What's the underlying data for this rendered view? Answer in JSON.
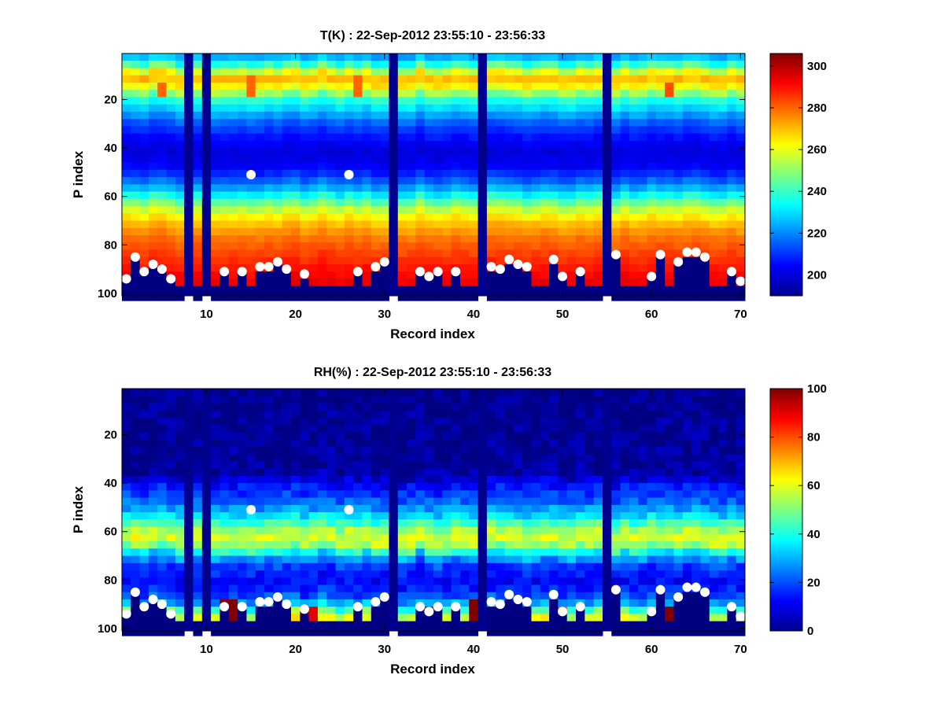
{
  "chart_data": [
    {
      "type": "heatmap",
      "title": "T(K) : 22-Sep-2012 23:55:10 - 23:56:33",
      "xlabel": "Record index",
      "ylabel": "P index",
      "xlim": [
        1,
        70
      ],
      "ylim": [
        1,
        101
      ],
      "y_reversed": true,
      "x_ticks": [
        10,
        20,
        30,
        40,
        50,
        60,
        70
      ],
      "y_ticks": [
        20,
        40,
        60,
        80,
        100
      ],
      "colormap": "jet",
      "colorbar": {
        "min": 190,
        "max": 306,
        "ticks": [
          200,
          220,
          240,
          260,
          280,
          300
        ]
      },
      "missing_records": [
        8,
        10,
        31,
        41,
        55
      ],
      "hot_spots": [
        {
          "record": 5,
          "p": 16,
          "value": 280
        },
        {
          "record": 15,
          "p": 14,
          "value": 280
        },
        {
          "record": 27,
          "p": 14,
          "value": 280
        },
        {
          "record": 62,
          "p": 16,
          "value": 283
        }
      ],
      "profile": [
        {
          "p": 1,
          "value": 222
        },
        {
          "p": 4,
          "value": 230
        },
        {
          "p": 8,
          "value": 255
        },
        {
          "p": 11,
          "value": 272
        },
        {
          "p": 15,
          "value": 262
        },
        {
          "p": 20,
          "value": 238
        },
        {
          "p": 25,
          "value": 226
        },
        {
          "p": 30,
          "value": 214
        },
        {
          "p": 36,
          "value": 205
        },
        {
          "p": 42,
          "value": 200
        },
        {
          "p": 48,
          "value": 204
        },
        {
          "p": 53,
          "value": 214
        },
        {
          "p": 58,
          "value": 228
        },
        {
          "p": 62,
          "value": 244
        },
        {
          "p": 66,
          "value": 258
        },
        {
          "p": 70,
          "value": 268
        },
        {
          "p": 76,
          "value": 277
        },
        {
          "p": 82,
          "value": 283
        },
        {
          "p": 88,
          "value": 288
        },
        {
          "p": 94,
          "value": 293
        },
        {
          "p": 101,
          "value": 297
        }
      ]
    },
    {
      "type": "heatmap",
      "title": "RH(%) : 22-Sep-2012 23:55:10 - 23:56:33",
      "xlabel": "Record index",
      "ylabel": "P index",
      "xlim": [
        1,
        70
      ],
      "ylim": [
        1,
        101
      ],
      "y_reversed": true,
      "x_ticks": [
        10,
        20,
        30,
        40,
        50,
        60,
        70
      ],
      "y_ticks": [
        20,
        40,
        60,
        80,
        100
      ],
      "colormap": "jet",
      "colorbar": {
        "min": 0,
        "max": 100,
        "ticks": [
          0,
          20,
          40,
          60,
          80,
          100
        ]
      },
      "missing_records": [
        8,
        10,
        31,
        41,
        55
      ],
      "profile": [
        {
          "p": 1,
          "value": 1
        },
        {
          "p": 36,
          "value": 3
        },
        {
          "p": 40,
          "value": 12
        },
        {
          "p": 46,
          "value": 20
        },
        {
          "p": 52,
          "value": 30
        },
        {
          "p": 56,
          "value": 42
        },
        {
          "p": 60,
          "value": 55
        },
        {
          "p": 63,
          "value": 60
        },
        {
          "p": 66,
          "value": 52
        },
        {
          "p": 70,
          "value": 32
        },
        {
          "p": 74,
          "value": 18
        },
        {
          "p": 80,
          "value": 12
        },
        {
          "p": 86,
          "value": 18
        },
        {
          "p": 90,
          "value": 30
        },
        {
          "p": 94,
          "value": 55
        },
        {
          "p": 98,
          "value": 70
        },
        {
          "p": 101,
          "value": 75
        }
      ],
      "hot_spots": [
        {
          "record": 12,
          "p": 93,
          "value": 100
        },
        {
          "record": 13,
          "p": 93,
          "value": 100
        },
        {
          "record": 21,
          "p": 95,
          "value": 100
        },
        {
          "record": 22,
          "p": 95,
          "value": 90
        },
        {
          "record": 35,
          "p": 94,
          "value": 95
        },
        {
          "record": 36,
          "p": 94,
          "value": 100
        },
        {
          "record": 38,
          "p": 95,
          "value": 100
        },
        {
          "record": 40,
          "p": 92,
          "value": 100
        },
        {
          "record": 62,
          "p": 95,
          "value": 100
        },
        {
          "record": 50,
          "p": 95,
          "value": 80
        }
      ]
    }
  ],
  "surface_markers": [
    {
      "record": 1,
      "p": 94
    },
    {
      "record": 2,
      "p": 85
    },
    {
      "record": 3,
      "p": 91
    },
    {
      "record": 4,
      "p": 88
    },
    {
      "record": 5,
      "p": 90
    },
    {
      "record": 6,
      "p": 94
    },
    {
      "record": 12,
      "p": 91
    },
    {
      "record": 14,
      "p": 91
    },
    {
      "record": 15,
      "p": 51
    },
    {
      "record": 16,
      "p": 89
    },
    {
      "record": 17,
      "p": 89
    },
    {
      "record": 18,
      "p": 87
    },
    {
      "record": 19,
      "p": 90
    },
    {
      "record": 21,
      "p": 92
    },
    {
      "record": 26,
      "p": 51
    },
    {
      "record": 27,
      "p": 91
    },
    {
      "record": 29,
      "p": 89
    },
    {
      "record": 30,
      "p": 87
    },
    {
      "record": 34,
      "p": 91
    },
    {
      "record": 35,
      "p": 93
    },
    {
      "record": 36,
      "p": 91
    },
    {
      "record": 38,
      "p": 91
    },
    {
      "record": 42,
      "p": 89
    },
    {
      "record": 43,
      "p": 90
    },
    {
      "record": 44,
      "p": 86
    },
    {
      "record": 45,
      "p": 88
    },
    {
      "record": 46,
      "p": 89
    },
    {
      "record": 49,
      "p": 86
    },
    {
      "record": 50,
      "p": 93
    },
    {
      "record": 52,
      "p": 91
    },
    {
      "record": 56,
      "p": 84
    },
    {
      "record": 60,
      "p": 93
    },
    {
      "record": 61,
      "p": 84
    },
    {
      "record": 63,
      "p": 87
    },
    {
      "record": 64,
      "p": 83
    },
    {
      "record": 65,
      "p": 83
    },
    {
      "record": 66,
      "p": 85
    },
    {
      "record": 69,
      "p": 91
    },
    {
      "record": 70,
      "p": 95
    }
  ]
}
